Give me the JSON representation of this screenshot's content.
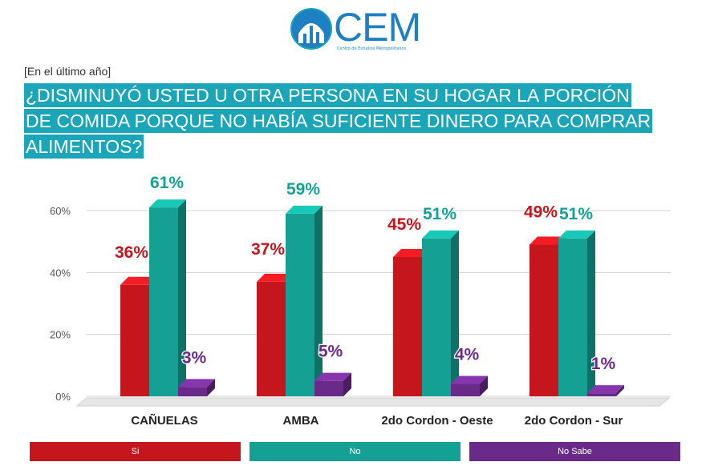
{
  "header": {
    "logo_text": "CEM",
    "logo_subtitle": "Centro de Estudios Metropolitanos",
    "kicker": "[En el último año]",
    "title_lines": [
      "¿DISMINUYÓ USTED U OTRA PERSONA EN SU HOGAR LA PORCIÓN",
      "DE COMIDA PORQUE NO HABÍA SUFICIENTE DINERO PARA COMPRAR",
      "ALIMENTOS?"
    ]
  },
  "colors": {
    "si": "#c4161c",
    "no": "#14a193",
    "no_sabe": "#6a2a8a",
    "title_bg": "#1aa5b8",
    "logo": "#1e7fc2"
  },
  "chart_data": {
    "type": "bar",
    "categories": [
      "CAÑUELAS",
      "AMBA",
      "2do Cordon - Oeste",
      "2do Cordon - Sur"
    ],
    "series": [
      {
        "name": "Si",
        "values": [
          36,
          37,
          45,
          49
        ],
        "labels": [
          "36%",
          "37%",
          "45%",
          "49%"
        ]
      },
      {
        "name": "No",
        "values": [
          61,
          59,
          51,
          51
        ],
        "labels": [
          "61%",
          "59%",
          "51%",
          "51%"
        ]
      },
      {
        "name": "No Sabe",
        "values": [
          3,
          5,
          4,
          1
        ],
        "labels": [
          "3%",
          "5%",
          "4%",
          "1%"
        ]
      }
    ],
    "yticks": [
      "0%",
      "20%",
      "40%",
      "60%"
    ],
    "ylim": [
      0,
      70
    ],
    "grid": true,
    "legend": "bottom"
  }
}
